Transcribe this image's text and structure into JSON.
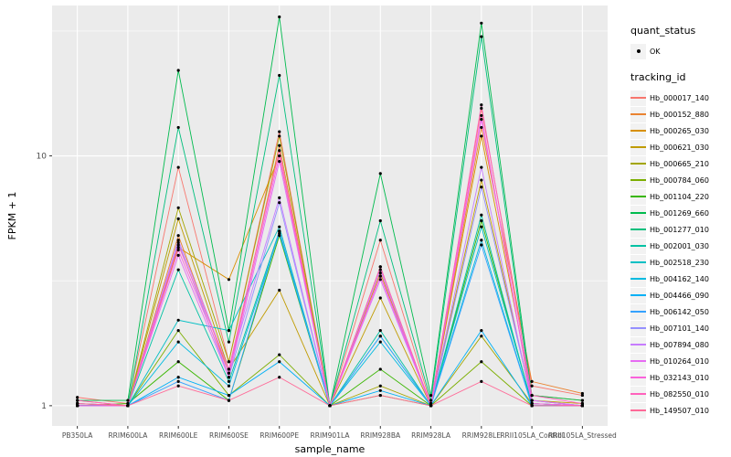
{
  "figure": {
    "background": "#FFFFFF",
    "panel_background": "#EBEBEB",
    "grid_color": "#FFFFFF",
    "axis_text_color": "#4D4D4D",
    "tick_color": "#333333",
    "point_color": "#000000"
  },
  "axes": {
    "x_title": "sample_name",
    "y_title": "FPKM + 1"
  },
  "legend": {
    "quant_status": {
      "title": "quant_status",
      "items": [
        {
          "label": "OK",
          "symbol": "point"
        }
      ]
    },
    "tracking_id": {
      "title": "tracking_id"
    }
  },
  "chart_data": {
    "type": "line",
    "title": "",
    "xlabel": "sample_name",
    "ylabel": "FPKM + 1",
    "y_scale": "log10",
    "ylim": [
      0.83,
      40
    ],
    "y_major_ticks": [
      1,
      10
    ],
    "y_tick_labels": [
      "1",
      "10"
    ],
    "y_minor_ticks": [
      3.162,
      31.62
    ],
    "grid": true,
    "legend_position": "right",
    "categories": [
      "PB350LA",
      "RRIM600LA",
      "RRIM600LE",
      "RRIM600SE",
      "RRIM600PE",
      "RRIM901LA",
      "RRIM928BA",
      "RRIM928LA",
      "RRIM928LE",
      "RRII105LA_Control",
      "RRII105LA_Stressed"
    ],
    "series": [
      {
        "name": "Hb_000017_140",
        "color": "#F8766D",
        "values": [
          1.08,
          1.02,
          9.0,
          1.5,
          12.5,
          1.0,
          4.6,
          1.02,
          15.5,
          1.2,
          1.1
        ]
      },
      {
        "name": "Hb_000152_880",
        "color": "#EA8331",
        "values": [
          1.05,
          1.0,
          4.8,
          1.35,
          11.0,
          1.0,
          3.6,
          1.0,
          13.0,
          1.25,
          1.12
        ]
      },
      {
        "name": "Hb_000265_030",
        "color": "#D89000",
        "values": [
          1.02,
          1.0,
          4.3,
          3.2,
          10.0,
          1.0,
          3.4,
          1.0,
          12.0,
          1.1,
          1.05
        ]
      },
      {
        "name": "Hb_000621_030",
        "color": "#C09B00",
        "values": [
          1.0,
          1.0,
          5.6,
          1.4,
          2.9,
          1.0,
          2.7,
          1.0,
          8.0,
          1.05,
          1.02
        ]
      },
      {
        "name": "Hb_000665_210",
        "color": "#A3A500",
        "values": [
          1.0,
          1.0,
          6.2,
          1.5,
          12.0,
          1.0,
          1.2,
          1.0,
          1.9,
          1.02,
          1.0
        ]
      },
      {
        "name": "Hb_000784_060",
        "color": "#7CAE00",
        "values": [
          1.0,
          1.0,
          2.0,
          1.1,
          1.6,
          1.0,
          1.1,
          1.0,
          1.5,
          1.0,
          1.0
        ]
      },
      {
        "name": "Hb_001104_220",
        "color": "#39B600",
        "values": [
          1.0,
          1.02,
          1.5,
          1.05,
          4.8,
          1.0,
          1.4,
          1.0,
          5.5,
          1.02,
          1.0
        ]
      },
      {
        "name": "Hb_001269_660",
        "color": "#00BB4E",
        "values": [
          1.05,
          1.05,
          22.0,
          2.0,
          36.0,
          1.0,
          8.5,
          1.1,
          34.0,
          1.1,
          1.05
        ]
      },
      {
        "name": "Hb_001277_010",
        "color": "#00BF7D",
        "values": [
          1.0,
          1.0,
          13.0,
          1.8,
          21.0,
          1.0,
          5.5,
          1.05,
          30.0,
          1.05,
          1.0
        ]
      },
      {
        "name": "Hb_002001_030",
        "color": "#00C1A3",
        "values": [
          1.0,
          1.0,
          3.5,
          1.25,
          5.0,
          1.0,
          2.0,
          1.0,
          5.8,
          1.0,
          1.0
        ]
      },
      {
        "name": "Hb_002518_230",
        "color": "#00BFC4",
        "values": [
          1.0,
          1.0,
          2.2,
          2.0,
          5.2,
          1.0,
          1.9,
          1.0,
          5.2,
          1.02,
          1.0
        ]
      },
      {
        "name": "Hb_004162_140",
        "color": "#00BAE0",
        "values": [
          1.02,
          1.0,
          1.8,
          1.2,
          4.9,
          1.0,
          1.8,
          1.0,
          4.6,
          1.0,
          1.0
        ]
      },
      {
        "name": "Hb_004466_090",
        "color": "#00B0F6",
        "values": [
          1.0,
          1.0,
          1.3,
          1.1,
          1.5,
          1.0,
          1.15,
          1.0,
          2.0,
          1.0,
          1.0
        ]
      },
      {
        "name": "Hb_006142_050",
        "color": "#35A2FF",
        "values": [
          1.0,
          1.0,
          1.25,
          1.05,
          5.0,
          1.0,
          1.9,
          1.0,
          4.4,
          1.0,
          1.0
        ]
      },
      {
        "name": "Hb_007101_140",
        "color": "#9590FF",
        "values": [
          1.0,
          1.0,
          4.5,
          1.3,
          6.5,
          1.0,
          3.3,
          1.0,
          7.5,
          1.05,
          1.0
        ]
      },
      {
        "name": "Hb_007894_080",
        "color": "#C77CFF",
        "values": [
          1.0,
          1.0,
          4.6,
          1.4,
          6.8,
          1.0,
          3.5,
          1.0,
          9.0,
          1.02,
          1.0
        ]
      },
      {
        "name": "Hb_010264_010",
        "color": "#E76BF3",
        "values": [
          1.02,
          1.0,
          4.0,
          1.3,
          9.5,
          1.0,
          3.2,
          1.0,
          14.0,
          1.05,
          1.0
        ]
      },
      {
        "name": "Hb_032143_010",
        "color": "#FA62DB",
        "values": [
          1.0,
          1.0,
          4.2,
          1.35,
          10.0,
          1.0,
          3.3,
          1.02,
          14.5,
          1.02,
          1.0
        ]
      },
      {
        "name": "Hb_082550_010",
        "color": "#FF62BC",
        "values": [
          1.05,
          1.0,
          4.4,
          1.4,
          10.5,
          1.0,
          3.6,
          1.0,
          16.0,
          1.1,
          1.02
        ]
      },
      {
        "name": "Hb_149507_010",
        "color": "#FF6A98",
        "values": [
          1.02,
          1.0,
          1.2,
          1.05,
          1.3,
          1.0,
          1.1,
          1.0,
          1.25,
          1.0,
          1.0
        ]
      }
    ]
  }
}
